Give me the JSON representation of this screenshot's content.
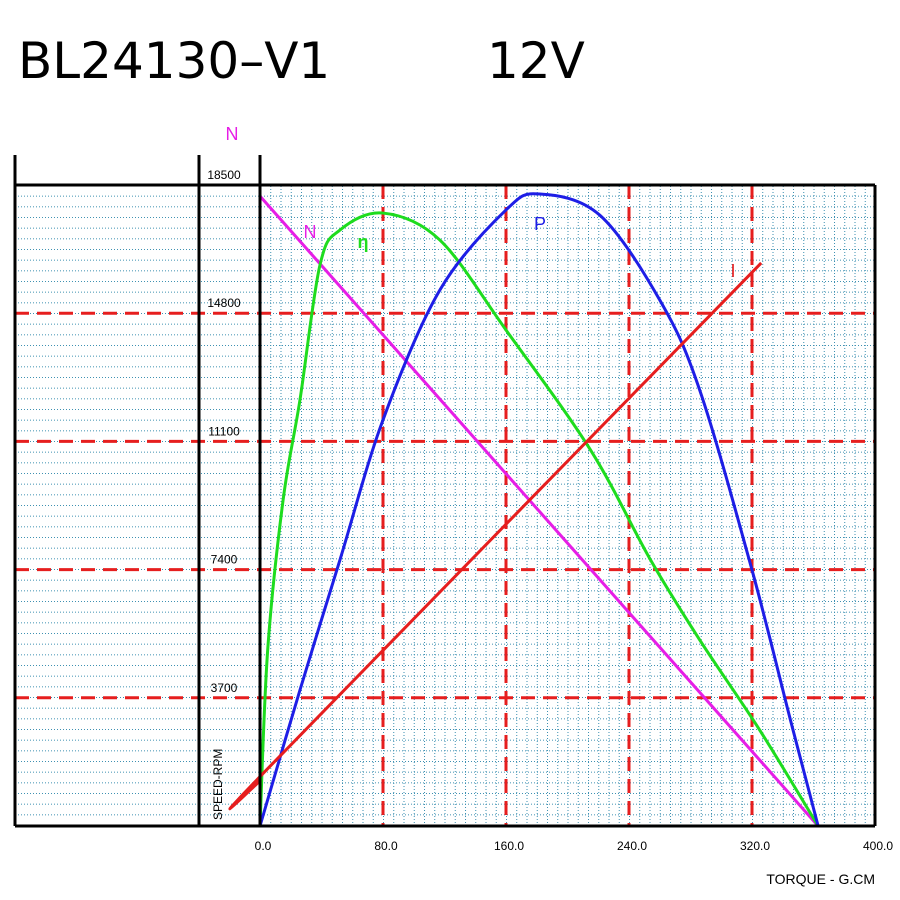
{
  "chart_data": {
    "type": "line",
    "title": "BL24130–V1",
    "subtitle": "12V",
    "y_axis_title": "N",
    "y_axis_label": "SPEED-RPM",
    "x_axis_label": "TORQUE - G.CM",
    "xlim": [
      0,
      400
    ],
    "xticks": [
      {
        "value": 0,
        "label": "0.0"
      },
      {
        "value": 80,
        "label": "80.0"
      },
      {
        "value": 160,
        "label": "160.0"
      },
      {
        "value": 240,
        "label": "240.0"
      },
      {
        "value": 320,
        "label": "320.0"
      },
      {
        "value": 400,
        "label": "400.0"
      }
    ],
    "ylim": [
      0,
      18500
    ],
    "yticks": [
      3700,
      7400,
      11100,
      14800,
      18500
    ],
    "grid": true,
    "series": [
      {
        "name": "N",
        "color": "#e61ee6",
        "x": [
          0,
          363
        ],
        "values": [
          18180,
          0
        ]
      },
      {
        "name": "η",
        "color": "#1edc1e",
        "x": [
          0,
          5,
          15,
          26,
          39,
          52,
          80,
          117,
          160,
          215,
          254,
          286,
          325,
          363
        ],
        "values": [
          0,
          5080,
          9400,
          12300,
          16190,
          17200,
          17690,
          16910,
          14315,
          10850,
          7680,
          5370,
          2770,
          0
        ]
      },
      {
        "name": "P",
        "color": "#1e1ee6",
        "x": [
          0,
          26,
          52,
          80,
          117,
          160,
          182,
          221,
          260,
          286,
          320,
          345,
          363
        ],
        "values": [
          0,
          3925,
          7680,
          11720,
          15470,
          17780,
          18240,
          17630,
          15180,
          12580,
          7390,
          3060,
          0
        ]
      },
      {
        "name": "I",
        "color": "#e61e1e",
        "x": [
          0,
          6,
          326
        ],
        "values": [
          1300,
          1700,
          16250
        ]
      }
    ]
  }
}
